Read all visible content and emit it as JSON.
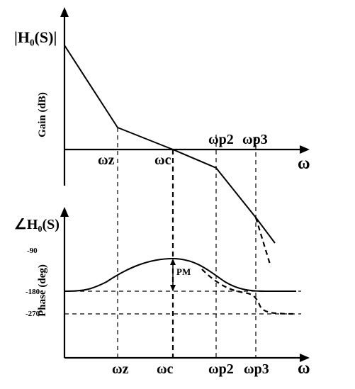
{
  "gain_plot": {
    "y_title": "|H₀(S)|",
    "y_axis_label": "Gain (dB)",
    "x_axis_symbol": "ω",
    "markers": [
      "ωz",
      "ωc",
      "ωp2",
      "ωp3"
    ]
  },
  "phase_plot": {
    "y_title": "∠H₀(S)",
    "y_axis_label": "Phase (deg)",
    "ticks": [
      "-90",
      "-180",
      "-270"
    ],
    "pm_label": "PM",
    "x_axis_symbol": "ω",
    "markers": [
      "ωz",
      "ωc",
      "ωp2",
      "ωp3"
    ]
  }
}
